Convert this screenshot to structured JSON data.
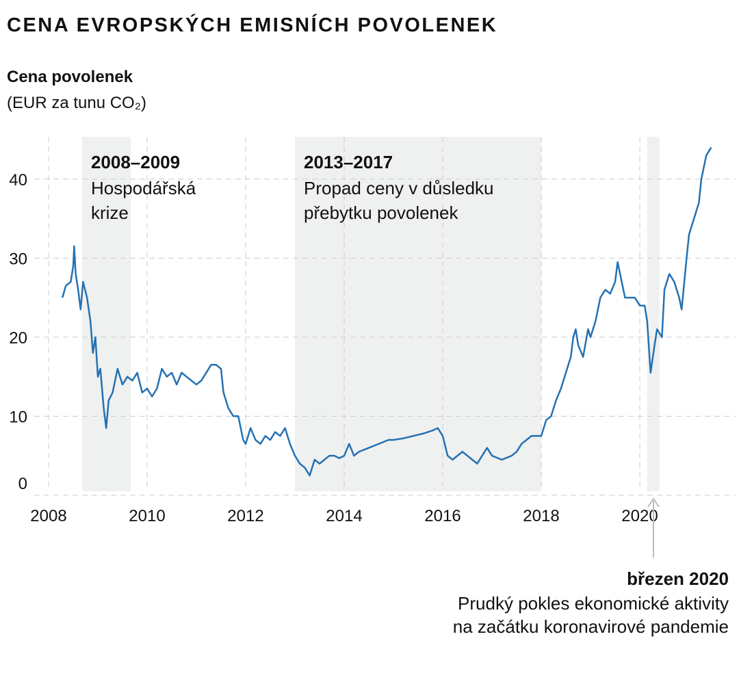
{
  "chart_data": {
    "type": "line",
    "title": "CENA EVROPSKÝCH EMISNÍCH POVOLENEK",
    "y_label": "Cena povolenek",
    "y_unit_label": "(EUR za tunu CO₂)",
    "xlim": [
      2008,
      2021.95
    ],
    "xticks": [
      2008,
      2010,
      2012,
      2014,
      2016,
      2018,
      2020
    ],
    "ylim": [
      0,
      45
    ],
    "yticks": [
      0,
      10,
      20,
      30,
      40
    ],
    "grid": true,
    "shaded": [
      {
        "range": [
          2008.68,
          2009.67
        ],
        "title": "2008–2009",
        "lines": [
          "Hospodářská",
          "krize"
        ]
      },
      {
        "range": [
          2013.0,
          2018.0
        ],
        "title": "2013–2017",
        "lines": [
          "Propad ceny v důsledku",
          "přebytku povolenek"
        ]
      },
      {
        "range": [
          2020.15,
          2020.4
        ],
        "title": "březen 2020",
        "lines": [
          "Prudký pokles ekonomické aktivity",
          "na začátku koronavirové pandemie"
        ]
      }
    ],
    "series": [
      {
        "name": "Cena povolenek",
        "color": "#2471b3",
        "x": [
          2008.28,
          2008.35,
          2008.45,
          2008.5,
          2008.52,
          2008.55,
          2008.6,
          2008.65,
          2008.7,
          2008.78,
          2008.85,
          2008.9,
          2008.95,
          2009.0,
          2009.05,
          2009.12,
          2009.17,
          2009.22,
          2009.3,
          2009.4,
          2009.5,
          2009.6,
          2009.7,
          2009.8,
          2009.9,
          2010.0,
          2010.1,
          2010.2,
          2010.3,
          2010.4,
          2010.5,
          2010.6,
          2010.7,
          2010.8,
          2010.9,
          2011.0,
          2011.1,
          2011.2,
          2011.3,
          2011.4,
          2011.5,
          2011.55,
          2011.65,
          2011.75,
          2011.85,
          2011.95,
          2012.0,
          2012.1,
          2012.2,
          2012.3,
          2012.4,
          2012.5,
          2012.6,
          2012.7,
          2012.8,
          2012.9,
          2013.0,
          2013.1,
          2013.2,
          2013.3,
          2013.4,
          2013.5,
          2013.6,
          2013.7,
          2013.8,
          2013.9,
          2014.0,
          2014.1,
          2014.2,
          2014.3,
          2014.5,
          2014.7,
          2014.9,
          2015.0,
          2015.2,
          2015.4,
          2015.6,
          2015.8,
          2015.9,
          2016.0,
          2016.1,
          2016.2,
          2016.4,
          2016.6,
          2016.7,
          2016.8,
          2016.9,
          2017.0,
          2017.2,
          2017.4,
          2017.5,
          2017.6,
          2017.7,
          2017.8,
          2018.0,
          2018.1,
          2018.2,
          2018.3,
          2018.4,
          2018.5,
          2018.6,
          2018.65,
          2018.7,
          2018.75,
          2018.85,
          2018.95,
          2019.0,
          2019.1,
          2019.2,
          2019.3,
          2019.4,
          2019.5,
          2019.55,
          2019.6,
          2019.7,
          2019.8,
          2019.9,
          2020.0,
          2020.1,
          2020.15,
          2020.22,
          2020.3,
          2020.35,
          2020.45,
          2020.5,
          2020.6,
          2020.7,
          2020.8,
          2020.85,
          2020.95,
          2021.0,
          2021.1,
          2021.2,
          2021.25,
          2021.35,
          2021.45
        ],
        "values": [
          25,
          26.5,
          27,
          29,
          31.5,
          28,
          26,
          23.5,
          27,
          25,
          22,
          18,
          20,
          15,
          16,
          11,
          8.5,
          12,
          13,
          16,
          14,
          15,
          14.5,
          15.5,
          13,
          13.5,
          12.5,
          13.5,
          16,
          15,
          15.5,
          14,
          15.5,
          15,
          14.5,
          14,
          14.5,
          15.5,
          16.5,
          16.5,
          16,
          13,
          11,
          10,
          10,
          7,
          6.5,
          8.5,
          7,
          6.5,
          7.5,
          7,
          8,
          7.5,
          8.5,
          6.5,
          5,
          4,
          3.5,
          2.5,
          4.5,
          4,
          4.5,
          5,
          5,
          4.7,
          5,
          6.5,
          5,
          5.5,
          6,
          6.5,
          7,
          7,
          7.2,
          7.5,
          7.8,
          8.2,
          8.5,
          7.5,
          5,
          4.5,
          5.5,
          4.5,
          4,
          5,
          6,
          5,
          4.5,
          5,
          5.5,
          6.5,
          7,
          7.5,
          7.5,
          9.5,
          10,
          12,
          13.5,
          15.5,
          17.5,
          20,
          21,
          19,
          17.5,
          21,
          20,
          22,
          25,
          26,
          25.5,
          27,
          29.5,
          28,
          25,
          25,
          25,
          24,
          24,
          22,
          15.5,
          19,
          21,
          20,
          26,
          28,
          27,
          25,
          23.5,
          30,
          33,
          35,
          37,
          40,
          43,
          44
        ]
      }
    ]
  }
}
